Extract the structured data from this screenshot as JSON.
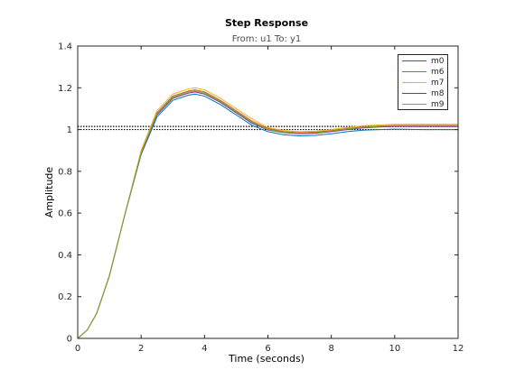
{
  "chart_data": {
    "type": "line",
    "title": "Step Response",
    "subtitle": "From: u1  To: y1",
    "xlabel": "Time (seconds)",
    "ylabel": "Amplitude",
    "xlim": [
      0,
      12
    ],
    "ylim": [
      0,
      1.4
    ],
    "xticks": [
      "0",
      "2",
      "4",
      "6",
      "8",
      "10",
      "12"
    ],
    "yticks": [
      "0",
      "0.2",
      "0.4",
      "0.6",
      "0.8",
      "1",
      "1.2",
      "1.4"
    ],
    "grid": false,
    "legend_position": "top-right",
    "reference_lines": [
      {
        "style": "dotted",
        "color": "#000000",
        "y": 1.0
      },
      {
        "style": "dotted",
        "color": "#000000",
        "y": 1.015
      }
    ],
    "series": [
      {
        "name": "m0",
        "color": "#0072BD",
        "x": [
          0,
          0.3,
          0.6,
          1.0,
          1.5,
          2.0,
          2.5,
          3.0,
          3.5,
          3.7,
          4.0,
          4.5,
          5.0,
          5.5,
          6.0,
          6.5,
          7.0,
          7.5,
          8.0,
          8.5,
          9.0,
          9.5,
          10.0,
          11.0,
          12.0
        ],
        "y": [
          0,
          0.04,
          0.12,
          0.3,
          0.6,
          0.88,
          1.06,
          1.14,
          1.165,
          1.17,
          1.16,
          1.12,
          1.07,
          1.02,
          0.99,
          0.975,
          0.97,
          0.972,
          0.98,
          0.99,
          0.997,
          1.0,
          1.002,
          1.0,
          1.0
        ]
      },
      {
        "name": "m6",
        "color": "#D95319",
        "x": [
          0,
          0.3,
          0.6,
          1.0,
          1.5,
          2.0,
          2.5,
          3.0,
          3.5,
          3.7,
          4.0,
          4.5,
          5.0,
          5.5,
          6.0,
          6.5,
          7.0,
          7.5,
          8.0,
          8.5,
          9.0,
          9.5,
          10.0,
          11.0,
          12.0
        ],
        "y": [
          0,
          0.04,
          0.12,
          0.3,
          0.6,
          0.89,
          1.08,
          1.16,
          1.185,
          1.19,
          1.18,
          1.14,
          1.09,
          1.04,
          1.005,
          0.99,
          0.985,
          0.988,
          0.995,
          1.005,
          1.012,
          1.017,
          1.02,
          1.02,
          1.02
        ]
      },
      {
        "name": "m7",
        "color": "#EDB120",
        "x": [
          0,
          0.3,
          0.6,
          1.0,
          1.5,
          2.0,
          2.5,
          3.0,
          3.5,
          3.7,
          4.0,
          4.5,
          5.0,
          5.5,
          6.0,
          6.5,
          7.0,
          7.5,
          8.0,
          8.5,
          9.0,
          9.5,
          10.0,
          11.0,
          12.0
        ],
        "y": [
          0,
          0.04,
          0.12,
          0.3,
          0.6,
          0.9,
          1.09,
          1.17,
          1.195,
          1.2,
          1.19,
          1.15,
          1.1,
          1.05,
          1.01,
          0.995,
          0.99,
          0.992,
          1.0,
          1.01,
          1.018,
          1.022,
          1.025,
          1.025,
          1.025
        ]
      },
      {
        "name": "m8",
        "color": "#7E2F8E",
        "x": [
          0,
          0.3,
          0.6,
          1.0,
          1.5,
          2.0,
          2.5,
          3.0,
          3.5,
          3.7,
          4.0,
          4.5,
          5.0,
          5.5,
          6.0,
          6.5,
          7.0,
          7.5,
          8.0,
          8.5,
          9.0,
          9.5,
          10.0,
          11.0,
          12.0
        ],
        "y": [
          0,
          0.04,
          0.12,
          0.3,
          0.6,
          0.885,
          1.07,
          1.15,
          1.175,
          1.18,
          1.17,
          1.13,
          1.08,
          1.03,
          0.998,
          0.985,
          0.98,
          0.982,
          0.99,
          1.0,
          1.008,
          1.012,
          1.015,
          1.015,
          1.015
        ]
      },
      {
        "name": "m9",
        "color": "#77AC30",
        "x": [
          0,
          0.3,
          0.6,
          1.0,
          1.5,
          2.0,
          2.5,
          3.0,
          3.5,
          3.7,
          4.0,
          4.5,
          5.0,
          5.5,
          6.0,
          6.5,
          7.0,
          7.5,
          8.0,
          8.5,
          9.0,
          9.5,
          10.0,
          11.0,
          12.0
        ],
        "y": [
          0,
          0.04,
          0.12,
          0.3,
          0.6,
          0.888,
          1.075,
          1.155,
          1.18,
          1.185,
          1.175,
          1.135,
          1.085,
          1.035,
          1.0,
          0.988,
          0.982,
          0.985,
          0.993,
          1.003,
          1.01,
          1.015,
          1.018,
          1.018,
          1.018
        ]
      }
    ]
  }
}
